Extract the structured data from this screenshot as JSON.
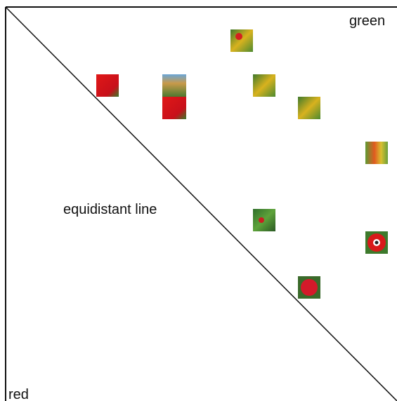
{
  "axes": {
    "green": "green",
    "red": "red"
  },
  "diagonal": {
    "label": "equidistant line"
  }
}
